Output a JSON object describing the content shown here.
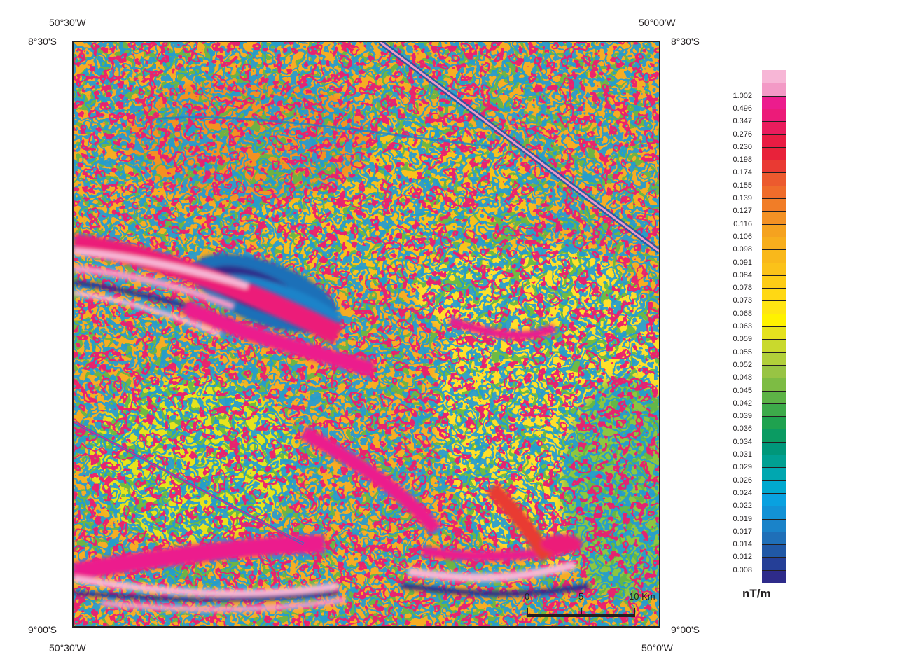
{
  "coordinates": {
    "top_left_lon": "50°30'W",
    "top_right_lon": "50°00'W",
    "top_left_lat": "8°30'S",
    "top_right_lat": "8°30'S",
    "bottom_left_lat": "9°00'S",
    "bottom_right_lat": "9°00'S",
    "bottom_left_lon": "50°30'W",
    "bottom_right_lon": "50°0'W"
  },
  "scalebar": {
    "label_0": "0",
    "label_5": "5",
    "label_10": "10 Km"
  },
  "legend": {
    "unit": "nT/m",
    "entries": [
      {
        "label": "",
        "color": "#f7b6d6"
      },
      {
        "label": "1.002",
        "color": "#f39ac6"
      },
      {
        "label": "0.496",
        "color": "#ec1c8d"
      },
      {
        "label": "0.347",
        "color": "#ec1b79"
      },
      {
        "label": "0.276",
        "color": "#ea1c5d"
      },
      {
        "label": "0.230",
        "color": "#e91c43"
      },
      {
        "label": "0.198",
        "color": "#e8223a"
      },
      {
        "label": "0.174",
        "color": "#e93a33"
      },
      {
        "label": "0.155",
        "color": "#ec5a2e"
      },
      {
        "label": "0.139",
        "color": "#ef6c2b"
      },
      {
        "label": "0.127",
        "color": "#f17d27"
      },
      {
        "label": "0.116",
        "color": "#f39124"
      },
      {
        "label": "0.106",
        "color": "#f5a21f"
      },
      {
        "label": "0.098",
        "color": "#f7ae1d"
      },
      {
        "label": "0.091",
        "color": "#f9b81b"
      },
      {
        "label": "0.084",
        "color": "#fbc219"
      },
      {
        "label": "0.078",
        "color": "#fdcc16"
      },
      {
        "label": "0.073",
        "color": "#ffd814"
      },
      {
        "label": "0.068",
        "color": "#ffe512"
      },
      {
        "label": "0.063",
        "color": "#fff200"
      },
      {
        "label": "0.059",
        "color": "#e5e21e"
      },
      {
        "label": "0.055",
        "color": "#c9d92d"
      },
      {
        "label": "0.052",
        "color": "#b1cf3a"
      },
      {
        "label": "0.048",
        "color": "#98c444"
      },
      {
        "label": "0.045",
        "color": "#7dbc44"
      },
      {
        "label": "0.042",
        "color": "#5db346"
      },
      {
        "label": "0.039",
        "color": "#3daa4a"
      },
      {
        "label": "0.036",
        "color": "#1fa24f"
      },
      {
        "label": "0.034",
        "color": "#0b9b62"
      },
      {
        "label": "0.031",
        "color": "#00977a"
      },
      {
        "label": "0.029",
        "color": "#00a092"
      },
      {
        "label": "0.026",
        "color": "#00a7b0"
      },
      {
        "label": "0.024",
        "color": "#00a9cf"
      },
      {
        "label": "0.022",
        "color": "#09a1e0"
      },
      {
        "label": "0.019",
        "color": "#1292d6"
      },
      {
        "label": "0.017",
        "color": "#1a83c9"
      },
      {
        "label": "0.014",
        "color": "#1f6fb8"
      },
      {
        "label": "0.012",
        "color": "#2058a6"
      },
      {
        "label": "0.008",
        "color": "#253f97"
      },
      {
        "label": "",
        "color": "#2e2b8a"
      }
    ]
  }
}
